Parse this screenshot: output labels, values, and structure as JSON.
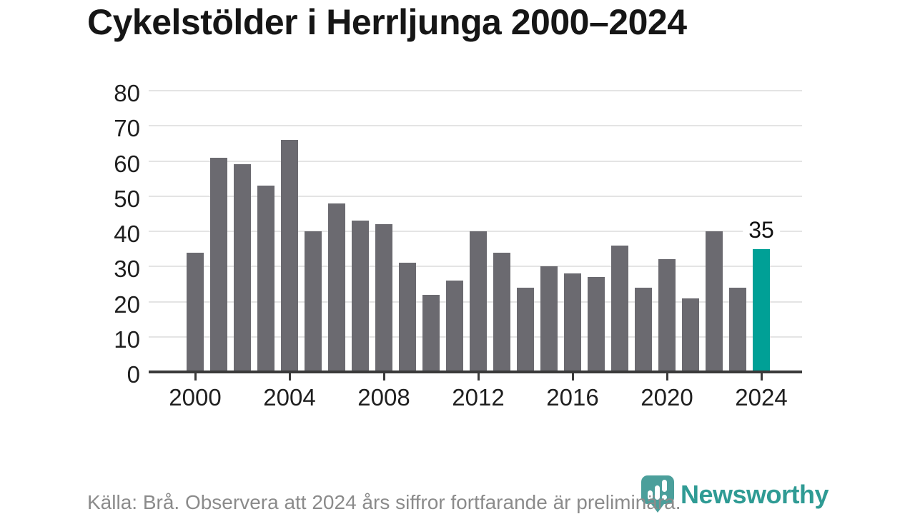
{
  "title": "Cykelstölder i Herrljunga 2000–2024",
  "chart_data": {
    "type": "bar",
    "categories": [
      2000,
      2001,
      2002,
      2003,
      2004,
      2005,
      2006,
      2007,
      2008,
      2009,
      2010,
      2011,
      2012,
      2013,
      2014,
      2015,
      2016,
      2017,
      2018,
      2019,
      2020,
      2021,
      2022,
      2023,
      2024
    ],
    "values": [
      34,
      61,
      59,
      53,
      66,
      40,
      48,
      43,
      42,
      31,
      22,
      26,
      40,
      34,
      24,
      30,
      28,
      27,
      36,
      24,
      32,
      21,
      40,
      24,
      35
    ],
    "title": "Cykelstölder i Herrljunga 2000–2024",
    "xlabel": "",
    "ylabel": "",
    "ylim": [
      0,
      80
    ],
    "y_ticks": [
      0,
      10,
      20,
      30,
      40,
      50,
      60,
      70,
      80
    ],
    "x_tick_labels": [
      "2000",
      "2004",
      "2008",
      "2012",
      "2016",
      "2020",
      "2024"
    ],
    "grid": "horizontal",
    "legend": "none",
    "bar_color": "#6b6a70",
    "highlight_index": 24,
    "highlight_color": "#00a096",
    "highlight_value_label": "35"
  },
  "footer": {
    "source_text": "Källa: Brå. Observera att 2024 års siffror fortfarande är preliminära."
  },
  "logo": {
    "text": "Newsworthy",
    "icon": "newsworthy-bubble-bars-icon",
    "color": "#2f9b94",
    "icon_color": "#4b9f9b"
  }
}
